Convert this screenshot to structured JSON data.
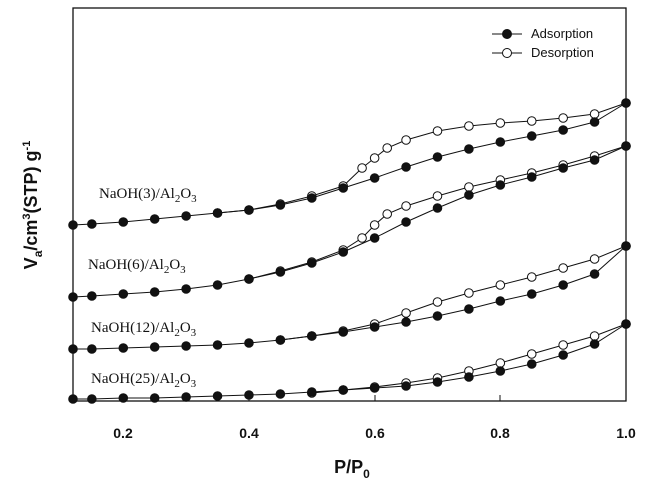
{
  "chart_data": {
    "type": "scatter",
    "xlabel": "P/P0",
    "ylabel": "Va/cm3(STP) g-1",
    "xlim": [
      0.12,
      1.0
    ],
    "xticks": [
      "0.2",
      "0.4",
      "0.6",
      "0.8",
      "1.0"
    ],
    "legend": {
      "placement": "top-right",
      "entries": [
        {
          "label": "Adsorption",
          "marker": "filled-circle"
        },
        {
          "label": "Desorption",
          "marker": "open-circle"
        }
      ]
    },
    "samples": [
      {
        "label": "NaOH(3)/Al2O3",
        "adsorption": {
          "x": [
            0.12,
            0.15,
            0.2,
            0.25,
            0.3,
            0.35,
            0.4,
            0.45,
            0.5,
            0.55,
            0.6,
            0.65,
            0.7,
            0.75,
            0.8,
            0.85,
            0.9,
            0.95,
            1.0
          ],
          "y": [
            225,
            224,
            222,
            219,
            216,
            213,
            210,
            205,
            198,
            188,
            178,
            167,
            157,
            149,
            142,
            136,
            130,
            122,
            103
          ]
        },
        "desorption": {
          "x": [
            0.35,
            0.4,
            0.45,
            0.5,
            0.55,
            0.58,
            0.6,
            0.62,
            0.65,
            0.7,
            0.75,
            0.8,
            0.85,
            0.9,
            0.95,
            1.0
          ],
          "y": [
            213,
            210,
            204,
            196,
            186,
            168,
            158,
            148,
            140,
            131,
            126,
            123,
            121,
            118,
            114,
            103
          ]
        }
      },
      {
        "label": "NaOH(6)/Al2O3",
        "adsorption": {
          "x": [
            0.12,
            0.15,
            0.2,
            0.25,
            0.3,
            0.35,
            0.4,
            0.45,
            0.5,
            0.55,
            0.6,
            0.65,
            0.7,
            0.75,
            0.8,
            0.85,
            0.9,
            0.95,
            1.0
          ],
          "y": [
            297,
            296,
            294,
            292,
            289,
            285,
            279,
            272,
            263,
            252,
            238,
            222,
            208,
            195,
            185,
            177,
            168,
            160,
            146
          ]
        },
        "desorption": {
          "x": [
            0.4,
            0.45,
            0.5,
            0.55,
            0.58,
            0.6,
            0.62,
            0.65,
            0.7,
            0.75,
            0.8,
            0.85,
            0.9,
            0.95,
            1.0
          ],
          "y": [
            279,
            271,
            262,
            250,
            238,
            225,
            214,
            206,
            196,
            187,
            180,
            173,
            165,
            156,
            146
          ]
        }
      },
      {
        "label": "NaOH(12)/Al2O3",
        "adsorption": {
          "x": [
            0.12,
            0.15,
            0.2,
            0.25,
            0.3,
            0.35,
            0.4,
            0.45,
            0.5,
            0.55,
            0.6,
            0.65,
            0.7,
            0.75,
            0.8,
            0.85,
            0.9,
            0.95,
            1.0
          ],
          "y": [
            349,
            349,
            348,
            347,
            346,
            345,
            343,
            340,
            336,
            332,
            327,
            322,
            316,
            309,
            301,
            294,
            285,
            274,
            246
          ]
        },
        "desorption": {
          "x": [
            0.45,
            0.5,
            0.55,
            0.6,
            0.65,
            0.7,
            0.75,
            0.8,
            0.85,
            0.9,
            0.95,
            1.0
          ],
          "y": [
            340,
            336,
            331,
            324,
            313,
            302,
            293,
            285,
            277,
            268,
            259,
            246
          ]
        }
      },
      {
        "label": "NaOH(25)/Al2O3",
        "adsorption": {
          "x": [
            0.12,
            0.15,
            0.2,
            0.25,
            0.3,
            0.35,
            0.4,
            0.45,
            0.5,
            0.55,
            0.6,
            0.65,
            0.7,
            0.75,
            0.8,
            0.85,
            0.9,
            0.95,
            1.0
          ],
          "y": [
            399,
            399,
            398,
            398,
            397,
            396,
            395,
            394,
            392,
            390,
            388,
            386,
            382,
            377,
            371,
            364,
            355,
            344,
            324
          ]
        },
        "desorption": {
          "x": [
            0.5,
            0.55,
            0.6,
            0.65,
            0.7,
            0.75,
            0.8,
            0.85,
            0.9,
            0.95,
            1.0
          ],
          "y": [
            393,
            390,
            387,
            383,
            378,
            371,
            363,
            354,
            345,
            336,
            324
          ]
        }
      }
    ]
  },
  "labels": {
    "s0": {
      "main": "NaOH(3)/Al",
      "sub": "2",
      "tail": "O",
      "sub2": "3"
    },
    "s1": {
      "main": "NaOH(6)/Al",
      "sub": "2",
      "tail": "O",
      "sub2": "3"
    },
    "s2": {
      "main": "NaOH(12)/Al",
      "sub": "2",
      "tail": "O",
      "sub2": "3"
    },
    "s3": {
      "main": "NaOH(25)/Al",
      "sub": "2",
      "tail": "O",
      "sub2": "3"
    }
  },
  "axis_titles": {
    "x_main": "P/P",
    "x_sub": "0",
    "y_v": "V",
    "y_a_sub": "a",
    "y_mid": "/cm",
    "y_3_sup": "3",
    "y_stp": "(STP) g",
    "y_neg1_sup": "-1"
  }
}
